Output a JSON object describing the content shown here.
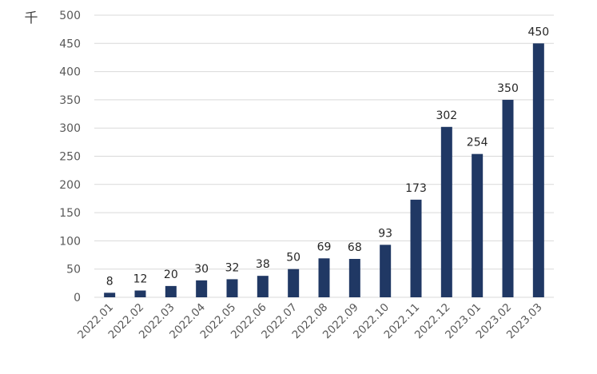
{
  "chart_data": {
    "type": "bar",
    "title": "",
    "xlabel": "",
    "ylabel": "",
    "unit_label": "千",
    "categories": [
      "2022.01",
      "2022.02",
      "2022.03",
      "2022.04",
      "2022.05",
      "2022.06",
      "2022.07",
      "2022.08",
      "2022.09",
      "2022.10",
      "2022.11",
      "2022.12",
      "2023.01",
      "2023.02",
      "2023.03"
    ],
    "values": [
      8,
      12,
      20,
      30,
      32,
      38,
      50,
      69,
      68,
      93,
      173,
      302,
      254,
      350,
      450
    ],
    "ylim": [
      0,
      500
    ],
    "yticks": [
      0,
      50,
      100,
      150,
      200,
      250,
      300,
      350,
      400,
      450,
      500
    ],
    "grid": true,
    "legend": "none",
    "bar_color": "#203864"
  }
}
